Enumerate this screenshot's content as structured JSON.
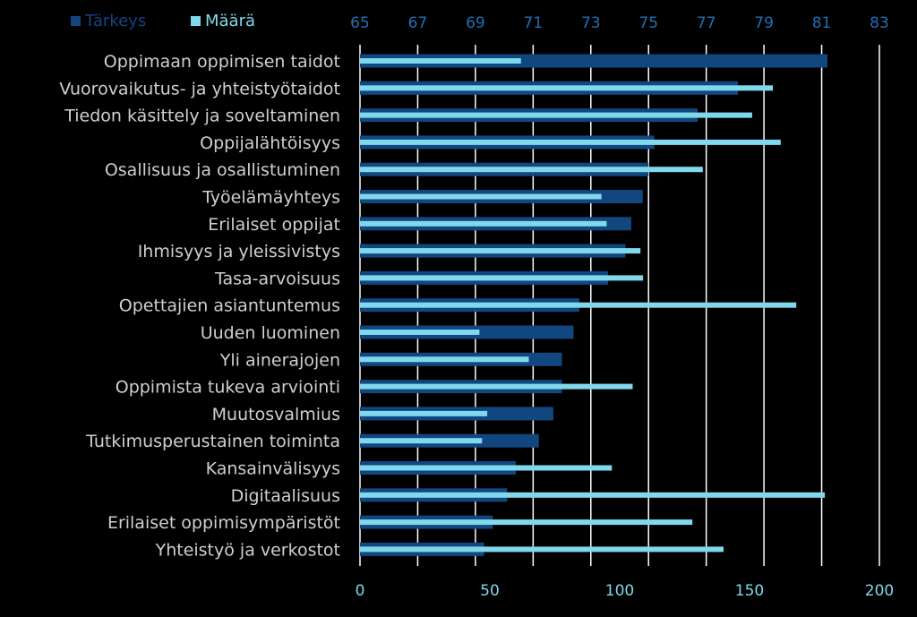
{
  "chart_data": {
    "type": "bar",
    "orientation": "horizontal",
    "categories": [
      "Oppimaan oppimisen taidot",
      "Vuorovaikutus- ja yhteistyötaidot",
      "Tiedon käsittely ja soveltaminen",
      "Oppijalähtöisyys",
      "Osallisuus ja osallistuminen",
      "Työelämäyhteys",
      "Erilaiset oppijat",
      "Ihmisyys ja yleissivistys",
      "Tasa-arvoisuus",
      "Opettajien asiantuntemus",
      "Uuden luominen",
      "Yli ainerajojen",
      "Oppimista tukeva arviointi",
      "Muutosvalmius",
      "Tutkimusperustainen toiminta",
      "Kansainvälisyys",
      "Digitaalisuus",
      "Erilaiset oppimisympäristöt",
      "Yhteistyö ja verkostot"
    ],
    "series": [
      {
        "name": "Tärkeys",
        "axis": "top",
        "color": "#12467f",
        "values": [
          81.2,
          78.1,
          76.7,
          75.2,
          75.0,
          74.8,
          74.4,
          74.2,
          73.6,
          72.6,
          72.4,
          72.0,
          72.0,
          71.7,
          71.2,
          70.4,
          70.1,
          69.6,
          69.3
        ]
      },
      {
        "name": "Määrä",
        "axis": "bottom",
        "color": "#7fd8ec",
        "values": [
          62,
          159,
          151,
          162,
          132,
          93,
          95,
          108,
          109,
          168,
          46,
          65,
          105,
          49,
          47,
          97,
          179,
          128,
          140
        ]
      }
    ],
    "top_axis": {
      "min": 65,
      "max": 83,
      "ticks": [
        "65",
        "67",
        "69",
        "71",
        "73",
        "75",
        "77",
        "79",
        "81",
        "83"
      ]
    },
    "bottom_axis": {
      "min": 0,
      "max": 200,
      "ticks": [
        "0",
        "50",
        "100",
        "150",
        "200"
      ]
    },
    "grid": true,
    "legend_position": "top-left"
  },
  "colors": {
    "background": "#000000",
    "grid": "#ffffff",
    "category_text": "#cfcfcf",
    "top_tick_text": "#1f6fb5",
    "bottom_tick_text": "#7fd8ec"
  }
}
